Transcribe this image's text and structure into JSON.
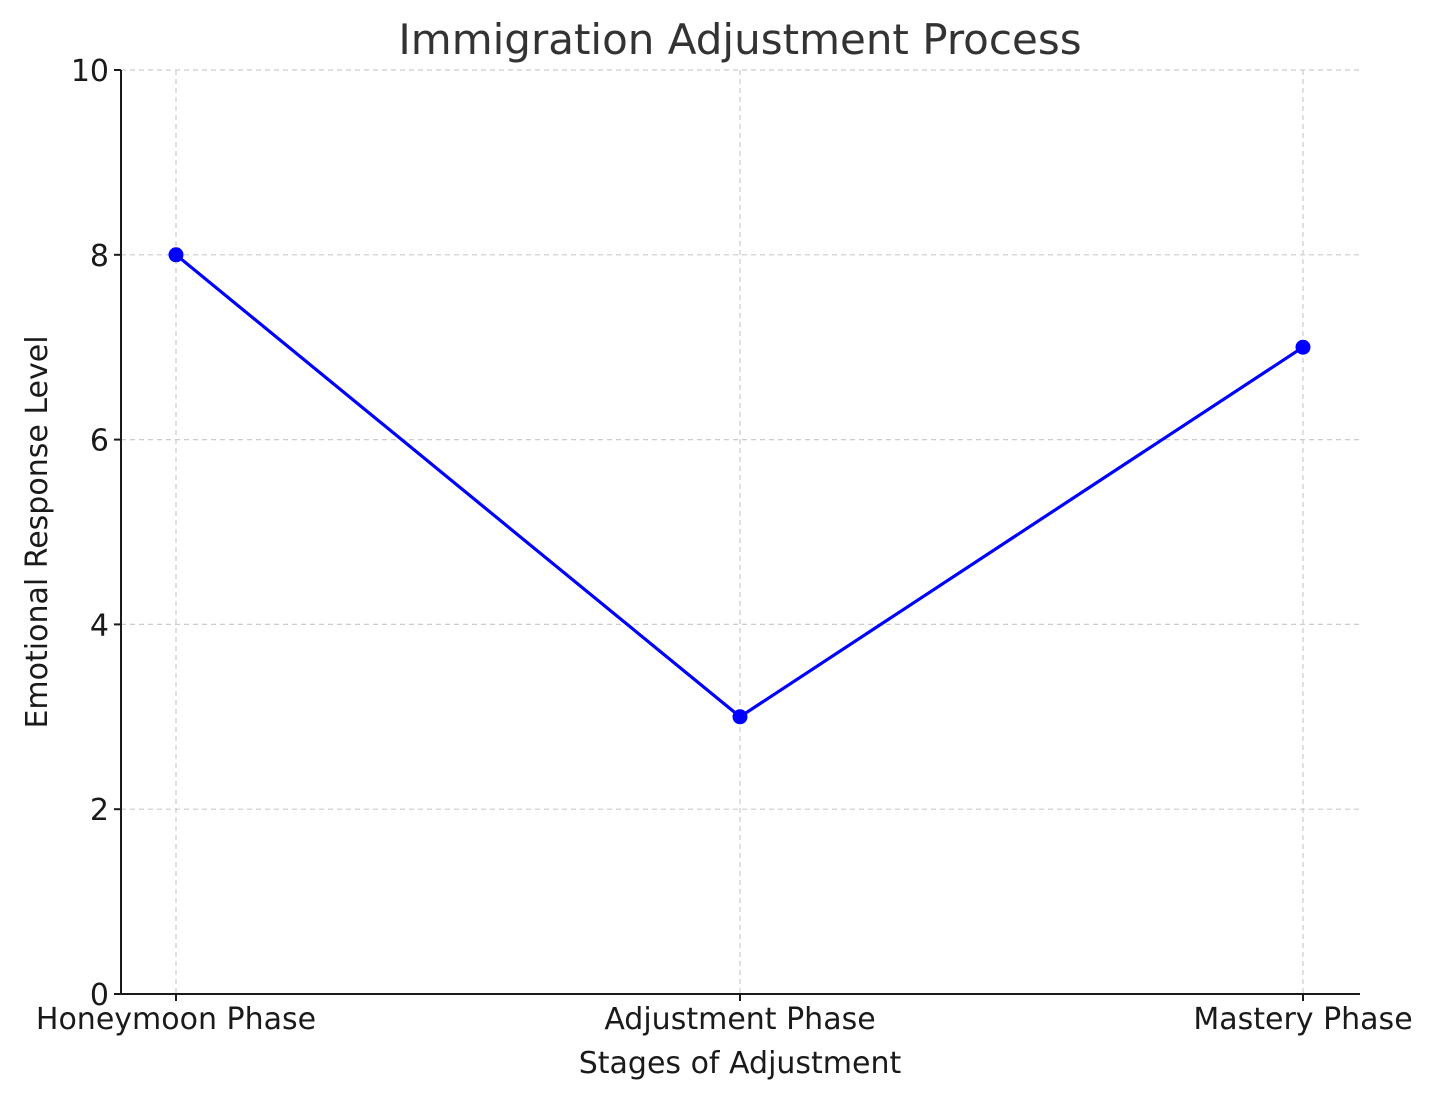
{
  "chart_data": {
    "type": "line",
    "title": "Immigration Adjustment Process",
    "xlabel": "Stages of Adjustment",
    "ylabel": "Emotional Response Level",
    "categories": [
      "Honeymoon Phase",
      "Adjustment Phase",
      "Mastery Phase"
    ],
    "series": [
      {
        "values": [
          8,
          3,
          7
        ],
        "color": "#0000ff",
        "marker": "circle"
      }
    ],
    "ylim": [
      0,
      10
    ],
    "yticks": [
      0,
      2,
      4,
      6,
      8,
      10
    ],
    "grid": true,
    "legend": "none"
  }
}
